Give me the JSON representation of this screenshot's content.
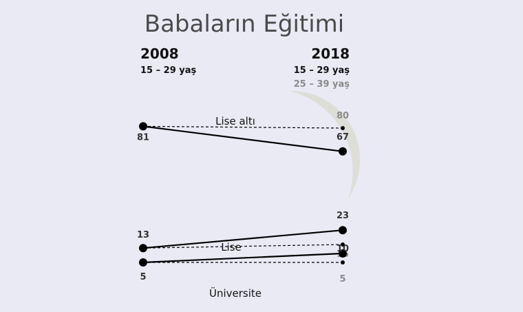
{
  "chart_data": {
    "type": "line",
    "title": "Babaların Eğitimi",
    "x": [
      "2008",
      "2018"
    ],
    "subtitles": {
      "left": "15 – 29 yaş",
      "right_primary": "15 – 29 yaş",
      "right_secondary": "25 – 39 yaş"
    },
    "categories": [
      "Lise altı",
      "Lise",
      "Üniversite"
    ],
    "series": [
      {
        "name": "15 – 29 yaş",
        "values": {
          "Lise altı": [
            81,
            67
          ],
          "Lise": [
            13,
            23
          ],
          "Üniversite": [
            5,
            10
          ]
        }
      },
      {
        "name": "25 – 39 yaş",
        "values": {
          "Lise altı": [
            81,
            80
          ],
          "Lise": [
            13,
            15
          ],
          "Üniversite": [
            5,
            5
          ]
        }
      }
    ],
    "colors": {
      "solid": "#000000",
      "dashed": "#000000",
      "grey_label": "#8a8a8a",
      "title": "#4a4a4a",
      "background": "#eaeaf5",
      "watermark": "#dcdcd2"
    },
    "ylim": [
      0,
      100
    ],
    "grid": false
  }
}
